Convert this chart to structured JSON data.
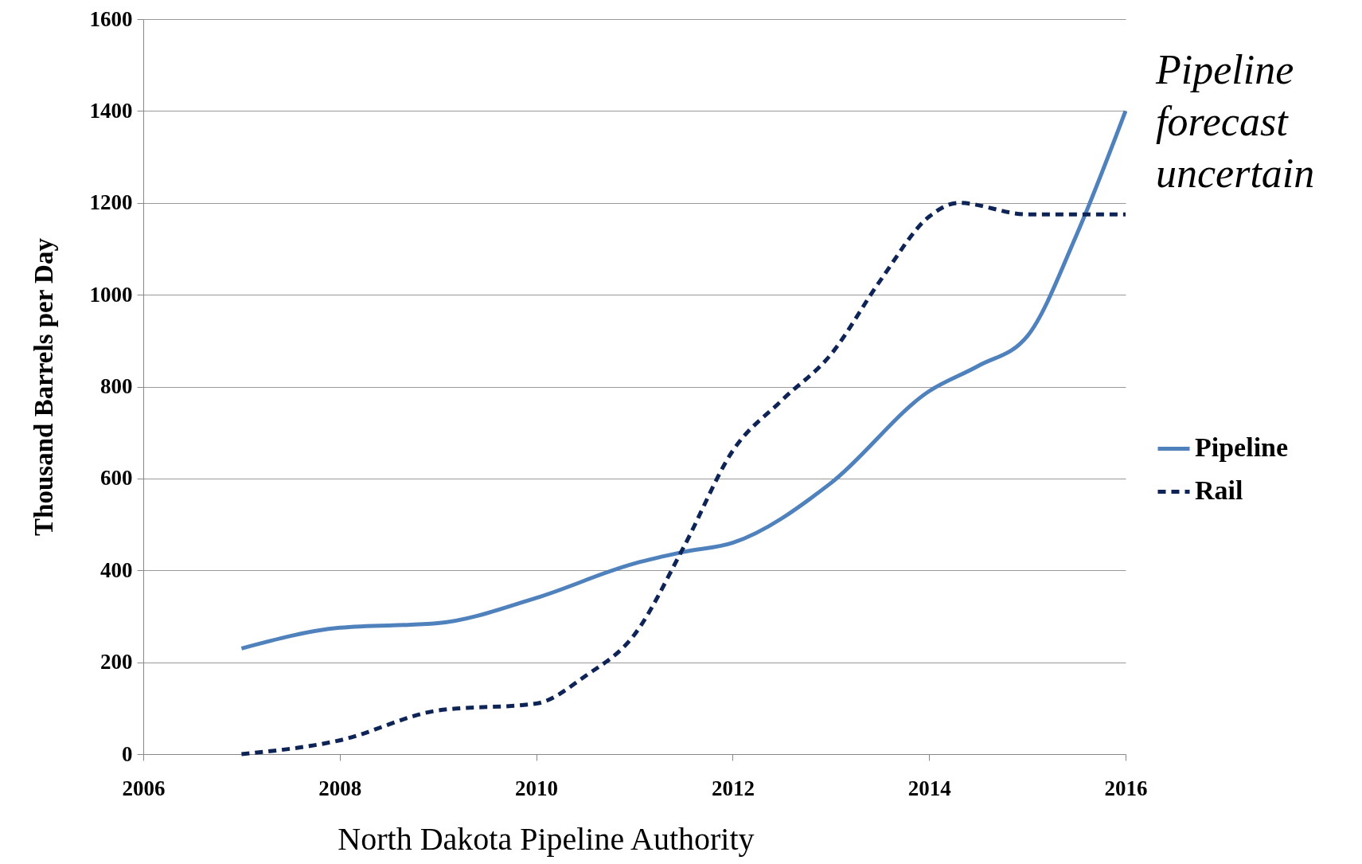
{
  "chart_data": {
    "type": "line",
    "ylabel": "Thousand Barrels per Day",
    "xlim": [
      2006,
      2016
    ],
    "xticks": [
      2006,
      2008,
      2010,
      2012,
      2014,
      2016
    ],
    "ylim": [
      0,
      1600
    ],
    "yticks": [
      0,
      200,
      400,
      600,
      800,
      1000,
      1200,
      1400,
      1600
    ],
    "grid": "y",
    "legend": "right",
    "annotations": [
      "Pipeline forecast uncertain",
      "North Dakota Pipeline Authority"
    ],
    "series": [
      {
        "name": "Pipeline",
        "color": "#4f81bd",
        "line_style": "solid",
        "x": [
          2007,
          2008,
          2009,
          2010,
          2011,
          2011.5,
          2012,
          2013,
          2014,
          2014.5,
          2015,
          2015.5,
          2016
        ],
        "values": [
          230,
          275,
          285,
          340,
          415,
          440,
          460,
          590,
          790,
          845,
          910,
          1130,
          1400
        ]
      },
      {
        "name": "Rail",
        "color": "#0f2456",
        "line_style": "dashed",
        "x": [
          2007,
          2008,
          2009,
          2010,
          2010.5,
          2011,
          2011.5,
          2012,
          2012.5,
          2013,
          2013.5,
          2014,
          2014.3,
          2015,
          2016
        ],
        "values": [
          0,
          30,
          95,
          110,
          170,
          260,
          450,
          660,
          770,
          870,
          1030,
          1170,
          1200,
          1175,
          1175
        ]
      }
    ]
  }
}
